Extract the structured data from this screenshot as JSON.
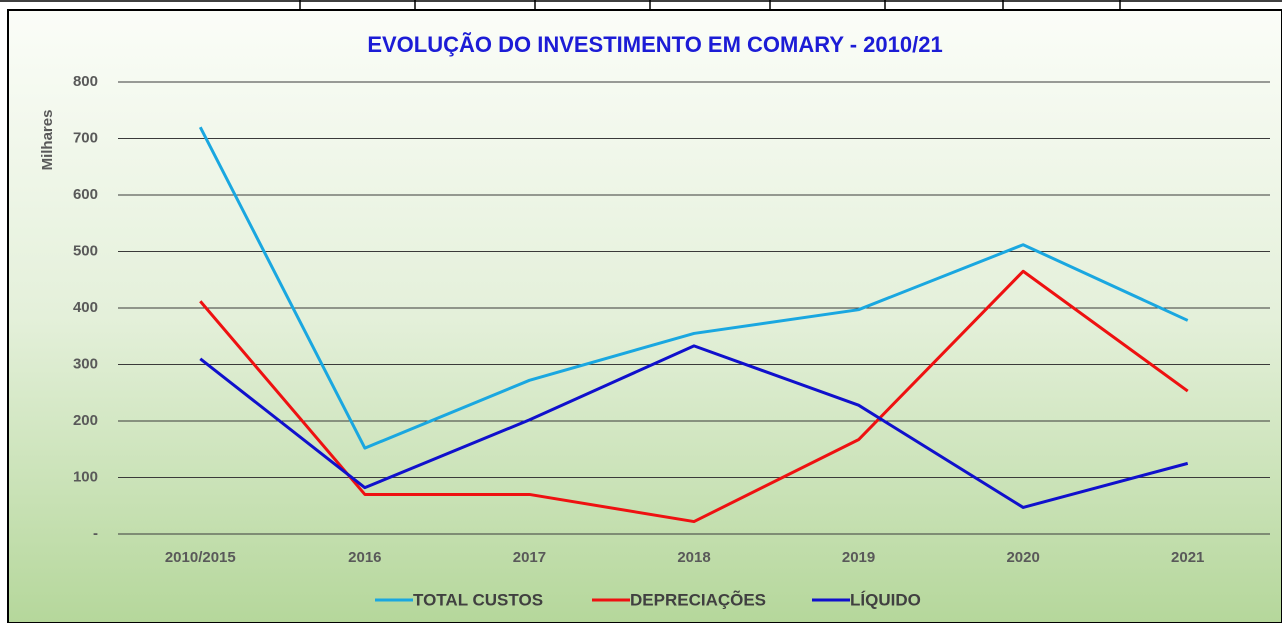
{
  "chart_data": {
    "type": "line",
    "title": "EVOLUÇÃO DO INVESTIMENTO EM COMARY - 2010/21",
    "y_label": "Milhares",
    "categories": [
      "2010/2015",
      "2016",
      "2017",
      "2018",
      "2019",
      "2020",
      "2021"
    ],
    "series": [
      {
        "name": "TOTAL CUSTOS",
        "color": "#1aa7e0",
        "values": [
          720,
          152,
          272,
          355,
          397,
          512,
          378
        ]
      },
      {
        "name": "DEPRECIAÇÕES",
        "color": "#ee1111",
        "values": [
          412,
          70,
          70,
          22,
          167,
          465,
          253
        ]
      },
      {
        "name": "LÍQUIDO",
        "color": "#1010cc",
        "values": [
          310,
          82,
          202,
          333,
          228,
          47,
          125
        ]
      }
    ],
    "ylim": [
      0,
      800
    ],
    "yticks": [
      {
        "value": 0,
        "label": "-"
      },
      100,
      200,
      300,
      400,
      500,
      600,
      700,
      800
    ],
    "grid": true,
    "legend": "bottom"
  }
}
